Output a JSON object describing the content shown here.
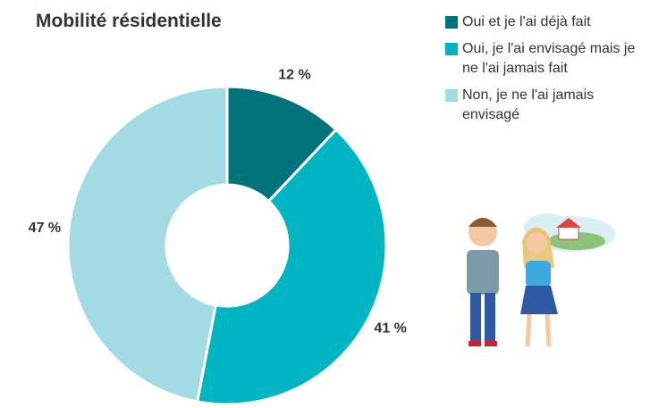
{
  "chart_data": {
    "type": "donut",
    "title": "Mobilité résidentielle",
    "categories": [
      "Oui et je l'ai déjà fait",
      "Oui, je l'ai envisagé mais je ne l'ai jamais fait",
      "Non, je ne l'ai jamais envisagé"
    ],
    "values": [
      12,
      41,
      47
    ],
    "value_labels": [
      "12  %",
      "41 %",
      "47 %"
    ],
    "colors": [
      "#00727a",
      "#00b5c2",
      "#a2dbe4"
    ]
  }
}
